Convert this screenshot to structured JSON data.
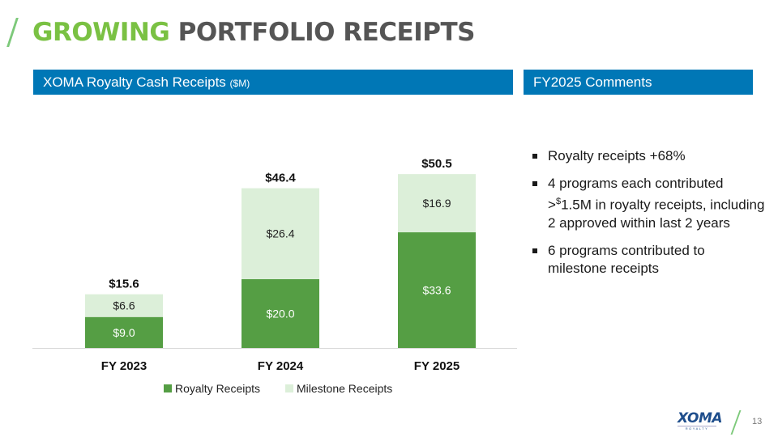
{
  "header": {
    "title_accent": "GROWING",
    "title_rest": "PORTFOLIO RECEIPTS"
  },
  "left_panel": {
    "heading": "XOMA Royalty Cash Receipts",
    "heading_unit": "($M)"
  },
  "right_panel": {
    "heading": "FY2025 Comments",
    "bullets": [
      {
        "text": "Royalty receipts +68%"
      },
      {
        "pre": "4 programs each contributed >",
        "sup": "$",
        "post": "1.5M in royalty receipts, including 2 approved within last 2 years"
      },
      {
        "text": "6 programs contributed to milestone receipts"
      }
    ]
  },
  "colors": {
    "royalty": "#559e44",
    "milestone": "#dcefd9",
    "band": "#0077b6",
    "accent_green": "#7ac143",
    "title_gray": "#555555"
  },
  "chart_data": {
    "type": "bar",
    "stacked": true,
    "title": "XOMA Royalty Cash Receipts ($M)",
    "xlabel": "",
    "ylabel": "",
    "categories": [
      "FY 2023",
      "FY 2024",
      "FY 2025"
    ],
    "series": [
      {
        "name": "Royalty Receipts",
        "values": [
          9.0,
          20.0,
          33.6
        ],
        "labels": [
          "$9.0",
          "$20.0",
          "$33.6"
        ]
      },
      {
        "name": "Milestone Receipts",
        "values": [
          6.6,
          26.4,
          16.9
        ],
        "labels": [
          "$6.6",
          "$26.4",
          "$16.9"
        ]
      }
    ],
    "totals": [
      15.6,
      46.4,
      50.5
    ],
    "total_labels": [
      "$15.6",
      "$46.4",
      "$50.5"
    ],
    "ylim": [
      0,
      55
    ],
    "grid": false,
    "legend": "bottom-center"
  },
  "footer": {
    "logo_text": "XOMA",
    "logo_sub": "ROYALTY",
    "page_number": "13"
  }
}
